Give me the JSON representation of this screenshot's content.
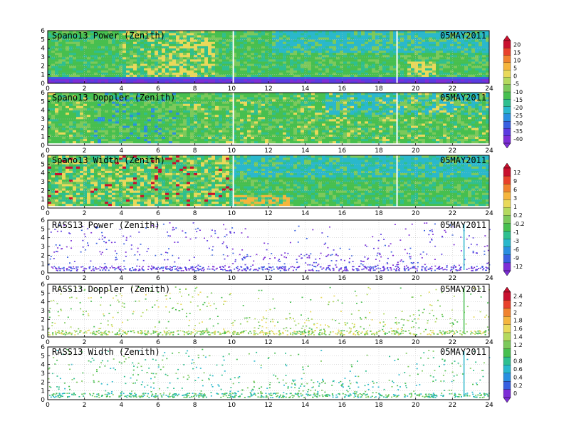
{
  "chart_data": [
    {
      "type": "heatmap",
      "title": "Spano13 Power (Zenith)",
      "date": "05MAY2011",
      "x_ticks": [
        "0",
        "2",
        "4",
        "6",
        "8",
        "10",
        "12",
        "14",
        "16",
        "18",
        "20",
        "22",
        "24"
      ],
      "y_ticks": [
        "0",
        "1",
        "2",
        "3",
        "4",
        "5",
        "6"
      ],
      "xlim": [
        0,
        24
      ],
      "ylim": [
        0,
        6
      ],
      "grid": true,
      "colorbar": {
        "labels": [
          "20",
          "15",
          "10",
          "5",
          "0",
          "-5",
          "-10",
          "-15",
          "-20",
          "-25",
          "-30",
          "-35",
          "-40"
        ],
        "colors": [
          "#c8102e",
          "#e8412b",
          "#f0822e",
          "#f5b53d",
          "#e9d95a",
          "#b4d95e",
          "#7cc95b",
          "#47bf4f",
          "#2fbf8f",
          "#2ab8cc",
          "#2a8fe0",
          "#3860e0",
          "#5b3be0",
          "#7d2ed6"
        ]
      }
    },
    {
      "type": "heatmap",
      "title": "Spano13 Doppler (Zenith)",
      "date": "05MAY2011",
      "x_ticks": [
        "0",
        "2",
        "4",
        "6",
        "8",
        "10",
        "12",
        "14",
        "16",
        "18",
        "20",
        "22",
        "24"
      ],
      "y_ticks": [
        "0",
        "1",
        "2",
        "3",
        "4",
        "5",
        "6"
      ],
      "xlim": [
        0,
        24
      ],
      "ylim": [
        0,
        6
      ],
      "grid": true
    },
    {
      "type": "heatmap",
      "title": "Spano13 Width (Zenith)",
      "date": "05MAY2011",
      "x_ticks": [
        "0",
        "2",
        "4",
        "6",
        "8",
        "10",
        "12",
        "14",
        "16",
        "18",
        "20",
        "22",
        "24"
      ],
      "y_ticks": [
        "0",
        "1",
        "2",
        "3",
        "4",
        "5",
        "6"
      ],
      "xlim": [
        0,
        24
      ],
      "ylim": [
        0,
        6
      ],
      "grid": true,
      "colorbar": {
        "labels": [
          "12",
          "9",
          "6",
          "3",
          "1",
          "0.2",
          "-0.2",
          "-1",
          "-3",
          "-6",
          "-9",
          "-12"
        ],
        "colors": [
          "#c8102e",
          "#e8412b",
          "#f0822e",
          "#f5b53d",
          "#e9d95a",
          "#b4d95e",
          "#7cc95b",
          "#47bf4f",
          "#2fbf8f",
          "#2ab8cc",
          "#2a8fe0",
          "#3860e0",
          "#7d2ed6"
        ]
      }
    },
    {
      "type": "scatter",
      "title": "RASS13 Power (Zenith)",
      "date": "05MAY2011",
      "x_ticks": [
        "0",
        "2",
        "4",
        "6",
        "8",
        "10",
        "12",
        "14",
        "16",
        "18",
        "20",
        "22",
        "24"
      ],
      "y_ticks": [
        "0",
        "1",
        "2",
        "3",
        "4",
        "5",
        "6"
      ],
      "xlim": [
        0,
        24
      ],
      "ylim": [
        0,
        6
      ],
      "grid": true
    },
    {
      "type": "scatter",
      "title": "RASS13 Doppler (Zenith)",
      "date": "05MAY2011",
      "x_ticks": [
        "0",
        "2",
        "4",
        "6",
        "8",
        "10",
        "12",
        "14",
        "16",
        "18",
        "20",
        "22",
        "24"
      ],
      "y_ticks": [
        "0",
        "1",
        "2",
        "3",
        "4",
        "5",
        "6"
      ],
      "xlim": [
        0,
        24
      ],
      "ylim": [
        0,
        6
      ],
      "grid": true,
      "colorbar": {
        "labels": [
          "2.4",
          "2.2",
          "2",
          "1.8",
          "1.6",
          "1.4",
          "1.2",
          "1",
          "0.8",
          "0.6",
          "0.4",
          "0.2",
          "0"
        ],
        "colors": [
          "#c8102e",
          "#e8412b",
          "#f0822e",
          "#f5b53d",
          "#e9d95a",
          "#b4d95e",
          "#7cc95b",
          "#47bf4f",
          "#2fbf8f",
          "#2ab8cc",
          "#2a8fe0",
          "#3860e0",
          "#7d2ed6"
        ]
      }
    },
    {
      "type": "scatter",
      "title": "RASS13 Width (Zenith)",
      "date": "05MAY2011",
      "x_ticks": [
        "0",
        "2",
        "4",
        "6",
        "8",
        "10",
        "12",
        "14",
        "16",
        "18",
        "20",
        "22",
        "24"
      ],
      "y_ticks": [
        "0",
        "1",
        "2",
        "3",
        "4",
        "5",
        "6"
      ],
      "xlim": [
        0,
        24
      ],
      "ylim": [
        0,
        6
      ],
      "grid": true
    }
  ]
}
